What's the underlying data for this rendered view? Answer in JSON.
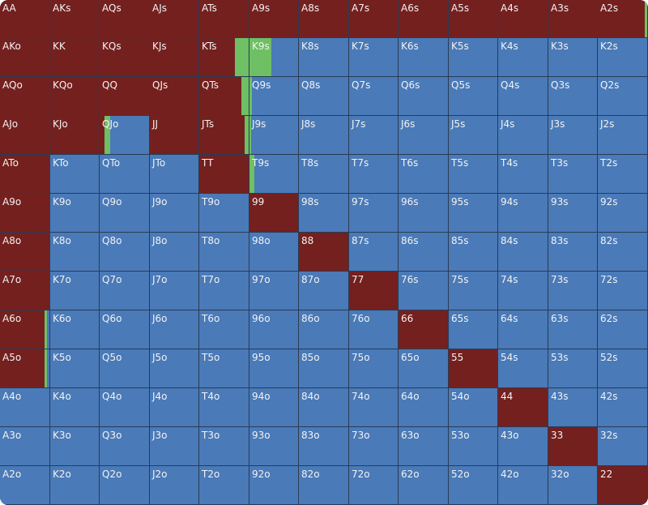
{
  "colors": {
    "raise": "#74201f",
    "call": "#6fbf64",
    "fold": "#4a7ab8",
    "border": "#2a3b55"
  },
  "rows": [
    [
      "AA",
      "AKs",
      "AQs",
      "AJs",
      "ATs",
      "A9s",
      "A8s",
      "A7s",
      "A6s",
      "A5s",
      "A4s",
      "A3s",
      "A2s"
    ],
    [
      "AKo",
      "KK",
      "KQs",
      "KJs",
      "KTs",
      "K9s",
      "K8s",
      "K7s",
      "K6s",
      "K5s",
      "K4s",
      "K3s",
      "K2s"
    ],
    [
      "AQo",
      "KQo",
      "QQ",
      "QJs",
      "QTs",
      "Q9s",
      "Q8s",
      "Q7s",
      "Q6s",
      "Q5s",
      "Q4s",
      "Q3s",
      "Q2s"
    ],
    [
      "AJo",
      "KJo",
      "QJo",
      "JJ",
      "JTs",
      "J9s",
      "J8s",
      "J7s",
      "J6s",
      "J5s",
      "J4s",
      "J3s",
      "J2s"
    ],
    [
      "ATo",
      "KTo",
      "QTo",
      "JTo",
      "TT",
      "T9s",
      "T8s",
      "T7s",
      "T6s",
      "T5s",
      "T4s",
      "T3s",
      "T2s"
    ],
    [
      "A9o",
      "K9o",
      "Q9o",
      "J9o",
      "T9o",
      "99",
      "98s",
      "97s",
      "96s",
      "95s",
      "94s",
      "93s",
      "92s"
    ],
    [
      "A8o",
      "K8o",
      "Q8o",
      "J8o",
      "T8o",
      "98o",
      "88",
      "87s",
      "86s",
      "85s",
      "84s",
      "83s",
      "82s"
    ],
    [
      "A7o",
      "K7o",
      "Q7o",
      "J7o",
      "T7o",
      "97o",
      "87o",
      "77",
      "76s",
      "75s",
      "74s",
      "73s",
      "72s"
    ],
    [
      "A6o",
      "K6o",
      "Q6o",
      "J6o",
      "T6o",
      "96o",
      "86o",
      "76o",
      "66",
      "65s",
      "64s",
      "63s",
      "62s"
    ],
    [
      "A5o",
      "K5o",
      "Q5o",
      "J5o",
      "T5o",
      "95o",
      "85o",
      "75o",
      "65o",
      "55",
      "54s",
      "53s",
      "52s"
    ],
    [
      "A4o",
      "K4o",
      "Q4o",
      "J4o",
      "T4o",
      "94o",
      "84o",
      "74o",
      "64o",
      "54o",
      "44",
      "43s",
      "42s"
    ],
    [
      "A3o",
      "K3o",
      "Q3o",
      "J3o",
      "T3o",
      "93o",
      "83o",
      "73o",
      "63o",
      "53o",
      "43o",
      "33",
      "32s"
    ],
    [
      "A2o",
      "K2o",
      "Q2o",
      "J2o",
      "T2o",
      "92o",
      "82o",
      "72o",
      "62o",
      "52o",
      "42o",
      "32o",
      "22"
    ]
  ],
  "mixed": {
    "A2s": {
      "raise": 0.95,
      "call": 0.05
    },
    "KTs": {
      "raise": 0.72,
      "call": 0.28
    },
    "K9s": {
      "raise": 0,
      "call": 0.45
    },
    "QTs": {
      "raise": 0.85,
      "call": 0.15
    },
    "Q9s": {
      "raise": 0,
      "call": 0.05
    },
    "QJo": {
      "raise": 0.1,
      "call": 0.12
    },
    "JTs": {
      "raise": 0.92,
      "call": 0.08
    },
    "J9s": {
      "raise": 0,
      "call": 0.03
    },
    "T9s": {
      "raise": 0,
      "call": 0.1
    },
    "A6o": {
      "raise": 0.9,
      "call": 0.05
    },
    "A5o": {
      "raise": 0.9,
      "call": 0.05
    }
  }
}
